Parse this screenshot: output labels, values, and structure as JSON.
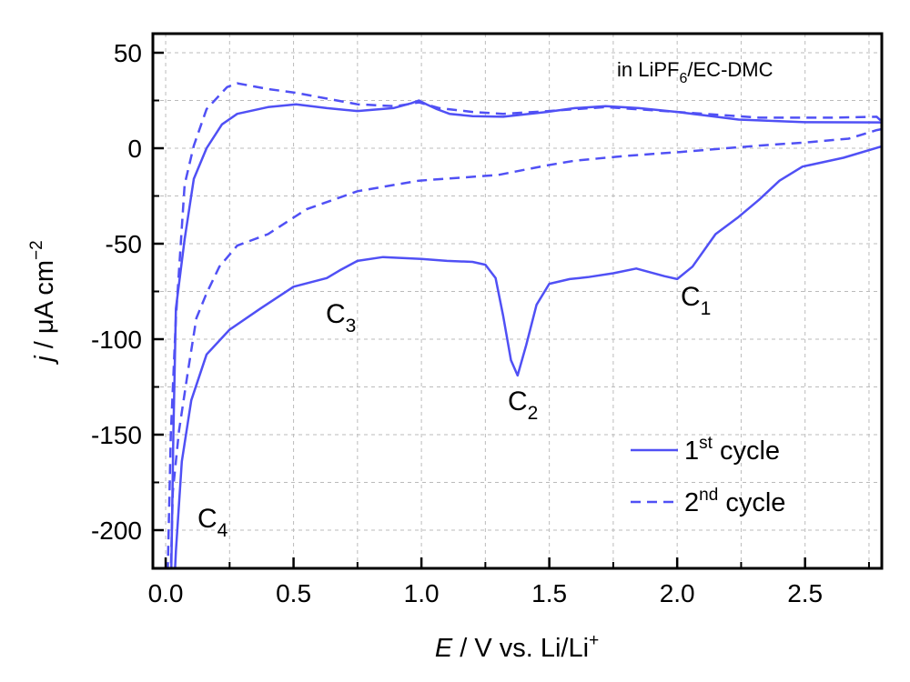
{
  "chart_data": {
    "type": "line",
    "title": "",
    "xlabel": {
      "italic": "E",
      "rest": " / V vs. Li/Li",
      "sup": "+"
    },
    "ylabel": {
      "italic": "j",
      "rest": " / μA cm",
      "sup": "−2"
    },
    "xlim": [
      -0.05,
      2.8
    ],
    "ylim": [
      -220,
      60
    ],
    "xticks": [
      "0.0",
      "0.5",
      "1.0",
      "1.5",
      "2.0",
      "2.5"
    ],
    "xtick_values": [
      0,
      0.5,
      1.0,
      1.5,
      2.0,
      2.5
    ],
    "yticks": [
      "50",
      "0",
      "-50",
      "-100",
      "-150",
      "-200"
    ],
    "ytick_values": [
      50,
      0,
      -50,
      -100,
      -150,
      -200
    ],
    "grid": true,
    "color": "#5050f5",
    "annotation": {
      "main": "in LiPF",
      "sub": "6",
      "tail": "/EC-DMC"
    },
    "peaks": [
      {
        "letter": "C",
        "sub": "1",
        "E": 2.0,
        "j": -68
      },
      {
        "letter": "C",
        "sub": "2",
        "E": 1.37,
        "j": -119
      },
      {
        "letter": "C",
        "sub": "3",
        "E": 0.63,
        "j": -68
      },
      {
        "letter": "C",
        "sub": "4",
        "E": 0.03,
        "j": -220
      }
    ],
    "legend_position": "bottom-right",
    "series": [
      {
        "name": "1st cycle",
        "label_num": "1",
        "label_sup": "st",
        "label_rest": " cycle",
        "style": "solid",
        "points": [
          [
            2.8,
            1
          ],
          [
            2.65,
            -5
          ],
          [
            2.49,
            -9.6
          ],
          [
            2.4,
            -17
          ],
          [
            2.32,
            -27
          ],
          [
            2.24,
            -36
          ],
          [
            2.15,
            -45
          ],
          [
            2.06,
            -62
          ],
          [
            2.0,
            -68.5
          ],
          [
            1.95,
            -67
          ],
          [
            1.84,
            -63
          ],
          [
            1.75,
            -65.5
          ],
          [
            1.65,
            -67.5
          ],
          [
            1.58,
            -68.5
          ],
          [
            1.5,
            -71
          ],
          [
            1.45,
            -82
          ],
          [
            1.41,
            -103
          ],
          [
            1.376,
            -119
          ],
          [
            1.35,
            -111
          ],
          [
            1.32,
            -88
          ],
          [
            1.29,
            -68
          ],
          [
            1.25,
            -61
          ],
          [
            1.2,
            -59.5
          ],
          [
            1.1,
            -59
          ],
          [
            1.0,
            -58
          ],
          [
            0.85,
            -57
          ],
          [
            0.75,
            -59
          ],
          [
            0.68,
            -64
          ],
          [
            0.63,
            -68
          ],
          [
            0.5,
            -72.5
          ],
          [
            0.37,
            -84
          ],
          [
            0.25,
            -95
          ],
          [
            0.16,
            -108
          ],
          [
            0.1,
            -132
          ],
          [
            0.063,
            -164
          ],
          [
            0.04,
            -211
          ],
          [
            0.036,
            -222
          ],
          null,
          [
            0.022,
            -222
          ],
          [
            0.03,
            -150
          ],
          [
            0.04,
            -84
          ],
          [
            0.074,
            -47.6
          ],
          [
            0.11,
            -16
          ],
          [
            0.16,
            0
          ],
          [
            0.22,
            12.5
          ],
          [
            0.28,
            18
          ],
          [
            0.4,
            21.5
          ],
          [
            0.51,
            23
          ],
          [
            0.63,
            21
          ],
          [
            0.75,
            19.5
          ],
          [
            0.89,
            21
          ],
          [
            0.96,
            23.5
          ],
          [
            0.99,
            25
          ],
          [
            1.02,
            23
          ],
          [
            1.06,
            20.5
          ],
          [
            1.11,
            18
          ],
          [
            1.2,
            16.8
          ],
          [
            1.32,
            16.5
          ],
          [
            1.49,
            19
          ],
          [
            1.6,
            21
          ],
          [
            1.72,
            22
          ],
          [
            1.85,
            21
          ],
          [
            2.0,
            19
          ],
          [
            2.24,
            15
          ],
          [
            2.5,
            13.6
          ],
          [
            2.8,
            13.5
          ]
        ]
      },
      {
        "name": "2nd cycle",
        "label_num": "2",
        "label_sup": "nd",
        "label_rest": " cycle",
        "style": "dashed",
        "points": [
          [
            2.8,
            10
          ],
          [
            2.78,
            9.5
          ],
          [
            2.67,
            5
          ],
          [
            2.5,
            3
          ],
          [
            2.32,
            1.4
          ],
          [
            2.01,
            -2
          ],
          [
            1.8,
            -4
          ],
          [
            1.6,
            -6.5
          ],
          [
            1.49,
            -9
          ],
          [
            1.3,
            -14
          ],
          [
            0.99,
            -17
          ],
          [
            0.75,
            -22.5
          ],
          [
            0.55,
            -32
          ],
          [
            0.4,
            -45
          ],
          [
            0.28,
            -51
          ],
          [
            0.21,
            -62
          ],
          [
            0.16,
            -76
          ],
          [
            0.12,
            -89
          ],
          [
            0.088,
            -116
          ],
          [
            0.052,
            -148
          ],
          [
            0.028,
            -180
          ],
          [
            0.02,
            -222
          ],
          null,
          [
            0.008,
            -222
          ],
          [
            0.02,
            -150
          ],
          [
            0.04,
            -89
          ],
          [
            0.074,
            -19
          ],
          [
            0.11,
            1.4
          ],
          [
            0.16,
            20.5
          ],
          [
            0.24,
            32
          ],
          [
            0.28,
            34
          ],
          [
            0.4,
            31
          ],
          [
            0.51,
            29
          ],
          [
            0.63,
            26
          ],
          [
            0.75,
            23
          ],
          [
            0.9,
            22
          ],
          [
            0.99,
            24
          ],
          [
            1.07,
            21
          ],
          [
            1.2,
            19
          ],
          [
            1.32,
            18
          ],
          [
            1.5,
            19.5
          ],
          [
            1.72,
            21.5
          ],
          [
            2.0,
            19
          ],
          [
            2.32,
            16
          ],
          [
            2.6,
            16
          ],
          [
            2.78,
            16.5
          ],
          [
            2.8,
            14
          ],
          [
            2.8,
            10
          ]
        ]
      }
    ]
  }
}
